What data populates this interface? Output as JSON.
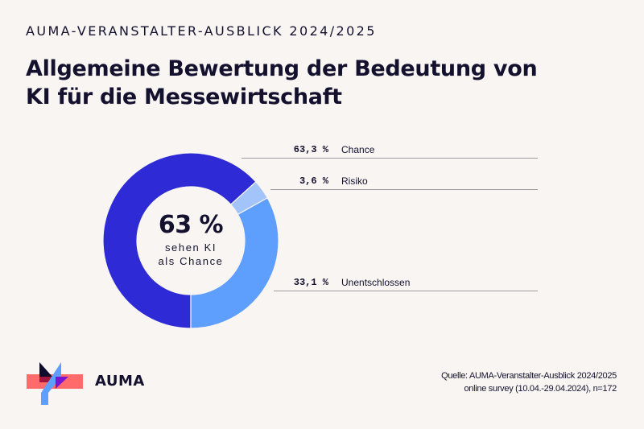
{
  "header": {
    "kicker": "AUMA-VERANSTALTER-AUSBLICK 2024/2025",
    "title_line1": "Allgemeine Bewertung der Bedeutung von",
    "title_line2": "KI für die Messewirtschaft"
  },
  "chart_data": {
    "type": "pie",
    "variant": "donut",
    "title": "Allgemeine Bewertung der Bedeutung von KI für die Messewirtschaft",
    "center_label": {
      "big": "63 %",
      "line1": "sehen KI",
      "line2": "als Chance"
    },
    "slices": [
      {
        "label": "Chance",
        "value": 63.3,
        "display": "63,3 %",
        "color": "#2e2bd6"
      },
      {
        "label": "Risiko",
        "value": 3.6,
        "display": "3,6 %",
        "color": "#a3c4fa"
      },
      {
        "label": "Unentschlossen",
        "value": 33.1,
        "display": "33,1 %",
        "color": "#5e9efd"
      }
    ],
    "unit": "%"
  },
  "footer": {
    "logo_text": "AUMA",
    "source_line1": "Quelle: AUMA-Veranstalter-Ausblick 2024/2025",
    "source_line2": "online survey (10.04.-29.04.2024), n=172"
  }
}
